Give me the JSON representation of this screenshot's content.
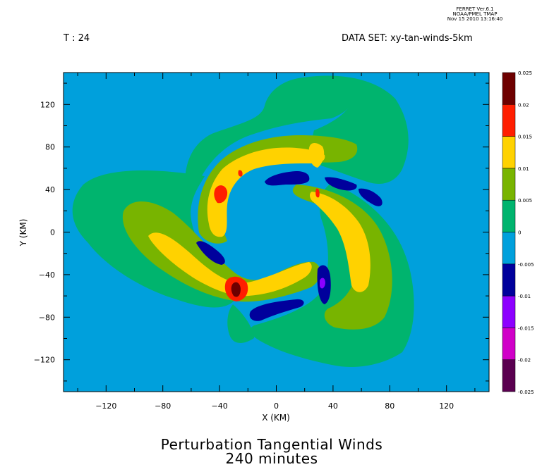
{
  "stamp": {
    "line1": "FERRET Ver.6.1",
    "line2": "NOAA/PMEL TMAP",
    "line3": "Nov 15 2010 13:16:40"
  },
  "header": {
    "time": "T : 24",
    "dataset": "DATA SET: xy-tan-winds-5km"
  },
  "chart_data": {
    "type": "heatmap",
    "title": "Perturbation Tangential Winds",
    "subtitle": "240 minutes",
    "xlabel": "X (KM)",
    "ylabel": "Y (KM)",
    "xlim": [
      -150,
      150
    ],
    "ylim": [
      -150,
      150
    ],
    "xticks": [
      -120,
      -80,
      -40,
      0,
      40,
      80,
      120
    ],
    "yticks": [
      120,
      80,
      40,
      0,
      -40,
      -80,
      -120
    ],
    "colorbar": {
      "levels": [
        "-0.025",
        "-0.02",
        "-0.015",
        "-0.01",
        "-0.005",
        "0",
        "0.005",
        "0.01",
        "0.015",
        "0.02",
        "0.025"
      ],
      "colors": [
        "#5a0050",
        "#d000c8",
        "#8c00ff",
        "#00009c",
        "#00a0dc",
        "#00b46e",
        "#78b400",
        "#ffd200",
        "#ff1e00",
        "#6e0000"
      ]
    },
    "regions": [
      {
        "level": "0 to 0.005",
        "shape": "spiral outer bands",
        "desc": "broad green three-arm pinwheel field"
      },
      {
        "level": "0.005 to 0.01",
        "shape": "arm",
        "desc": "olive bands along each spiral arm"
      },
      {
        "level": "0.01 to 0.015",
        "shape": "arm",
        "desc": "yellow cores along three arms"
      },
      {
        "level": "0.015 to 0.02",
        "center": [
          -28,
          -55
        ],
        "desc": "red maximum"
      },
      {
        "level": "0.02 to 0.025",
        "center": [
          -28,
          -55
        ],
        "desc": "dark red core"
      },
      {
        "level": "-0.01 to -0.005",
        "center": [
          0,
          38
        ],
        "desc": "blue negative streak"
      },
      {
        "level": "-0.01 to -0.005",
        "center": [
          -5,
          -75
        ],
        "desc": "blue negative streak"
      },
      {
        "level": "-0.01 to -0.005",
        "center": [
          30,
          -40
        ],
        "desc": "blue negative streak"
      },
      {
        "level": "-0.015 to -0.01",
        "center": [
          32,
          -45
        ],
        "desc": "violet minimum"
      }
    ]
  }
}
